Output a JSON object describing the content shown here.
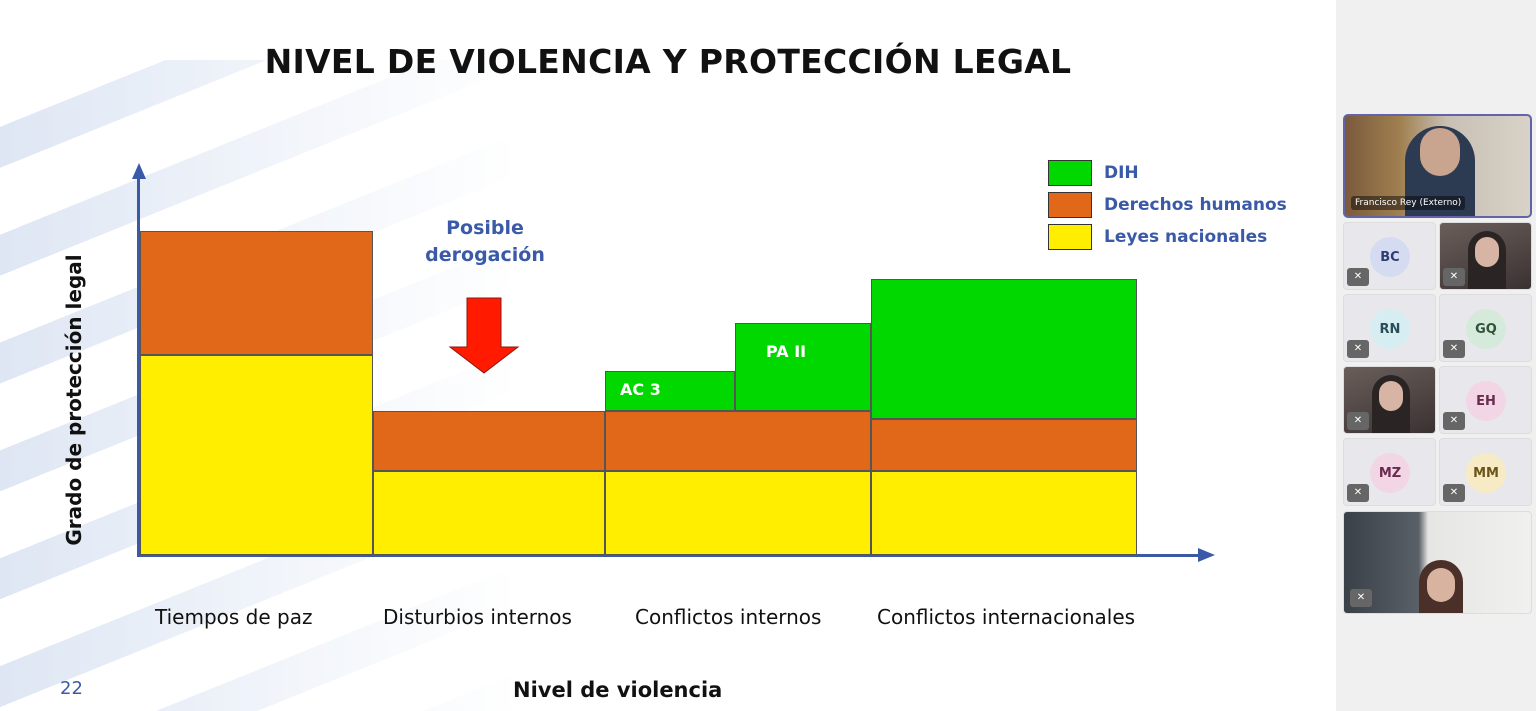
{
  "slide": {
    "title": "NIVEL DE VIOLENCIA Y PROTECCIÓN LEGAL",
    "page_number": "22",
    "annotation": "Posible derogación",
    "step_labels": [
      "AC 3",
      "PA II"
    ]
  },
  "chart_data": {
    "type": "bar",
    "stacked": true,
    "title": "NIVEL DE VIOLENCIA Y PROTECCIÓN LEGAL",
    "xlabel": "Nivel de violencia",
    "ylabel": "Grado de protección legal",
    "categories": [
      "Tiempos de paz",
      "Disturbios internos",
      "Conflictos internos",
      "Conflictos internacionales"
    ],
    "series": [
      {
        "name": "Leyes nacionales",
        "color": "#ffee00",
        "values": [
          50,
          21,
          21,
          21
        ]
      },
      {
        "name": "Derechos humanos",
        "color": "#e06818",
        "values": [
          31,
          15,
          15,
          13
        ]
      },
      {
        "name": "DIH",
        "color": "#00d800",
        "values": [
          0,
          0,
          [
            10,
            22
          ],
          35
        ]
      }
    ],
    "legend": "top-right",
    "grid": false,
    "y_ticks": false
  },
  "meeting": {
    "featured": {
      "name": "Francisco Rey (Externo)"
    },
    "participants": [
      {
        "initials": "BC",
        "bg": "#d5dcf2",
        "fg": "#2c3e70"
      },
      {
        "initials": "",
        "video": true
      },
      {
        "initials": "RN",
        "bg": "#d6eef2",
        "fg": "#2a4e58"
      },
      {
        "initials": "GQ",
        "bg": "#d6eadb",
        "fg": "#2f5238"
      },
      {
        "initials": "",
        "video": true
      },
      {
        "initials": "EH",
        "bg": "#f2d6e6",
        "fg": "#6a2b4e"
      },
      {
        "initials": "MZ",
        "bg": "#f2d6e6",
        "fg": "#6a2b4e"
      },
      {
        "initials": "MM",
        "bg": "#f6ebc4",
        "fg": "#6a5418"
      }
    ]
  }
}
